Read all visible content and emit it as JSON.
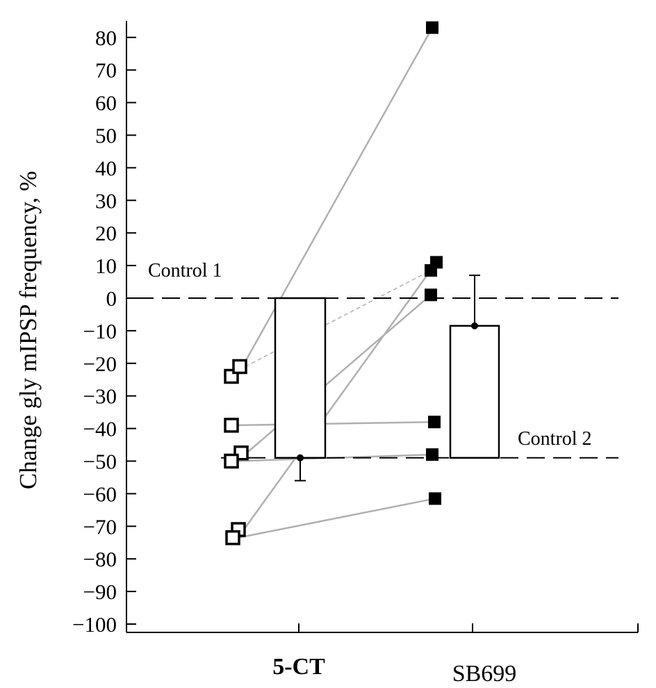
{
  "chart_data": {
    "type": "bar",
    "title": "",
    "xlabel": "",
    "ylabel": "Change gly mIPSP frequency, %",
    "ylim": [
      -100,
      85
    ],
    "yticks": [
      80,
      70,
      60,
      50,
      40,
      30,
      20,
      10,
      0,
      -10,
      -20,
      -30,
      -40,
      -50,
      -60,
      -70,
      -80,
      -90,
      -100
    ],
    "categories": [
      "5-CT",
      "SB699"
    ],
    "bars": [
      {
        "category": "5-CT",
        "bottom": 0,
        "top": -49,
        "error_end": -56
      },
      {
        "category": "SB699",
        "bottom": -49,
        "top": -8.5,
        "error_end": 7
      }
    ],
    "reference_lines": [
      {
        "label": "Control 1",
        "value": 0
      },
      {
        "label": "Control 2",
        "value": -49
      }
    ],
    "paired_points": [
      {
        "5-CT": -24,
        "SB699": 83,
        "line": "solid"
      },
      {
        "5-CT": -21,
        "SB699": 8.5,
        "line": "dashed"
      },
      {
        "5-CT": -39,
        "SB699": -38,
        "line": "solid"
      },
      {
        "5-CT": -47.5,
        "SB699": 1,
        "line": "solid"
      },
      {
        "5-CT": -50,
        "SB699": -48,
        "line": "solid"
      },
      {
        "5-CT": -71,
        "SB699": 11,
        "line": "solid"
      },
      {
        "5-CT": -73.5,
        "SB699": -61.5,
        "line": "solid"
      }
    ],
    "markers": {
      "5-CT": "open-square",
      "SB699": "filled-square"
    },
    "colors": {
      "axis": "#000000",
      "pair_line": "#b0b0b0",
      "bar_fill": "#ffffff"
    }
  }
}
